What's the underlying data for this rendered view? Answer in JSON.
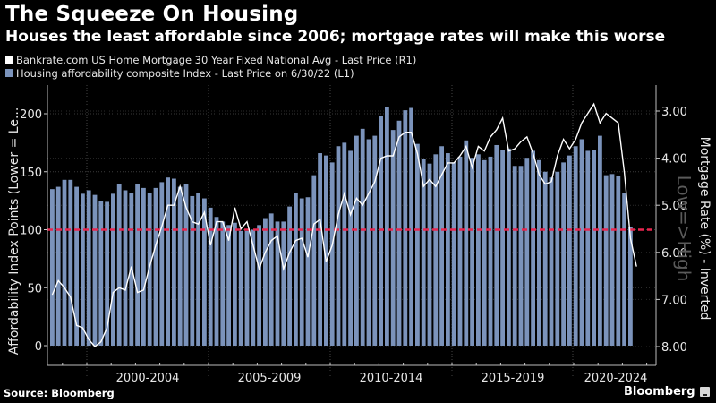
{
  "header": {
    "title": "The Squeeze On Housing",
    "subtitle": "Houses the least affordable since 2006; mortgage rates will make this worse"
  },
  "legend": [
    {
      "label": "Bankrate.com US Home Mortgage 30 Year Fixed National Avg - Last Price (R1)",
      "color": "#ffffff"
    },
    {
      "label": "Housing affordability composite Index - Last Price on 6/30/22 (L1)",
      "color": "#7b93bb"
    }
  ],
  "footer": {
    "source": "Source: Bloomberg",
    "brand": "Bloomberg"
  },
  "chart_data": {
    "type": "bar",
    "title": "The Squeeze On Housing",
    "subtitle": "Houses the least affordable since 2006; mortgage rates will make this worse",
    "ylabel": "Affordability Index Points (Lower = Le...",
    "y2label": "Mortgage Rate (%) - Inverted",
    "y2_annotation": "Low=>High",
    "xlabel": "",
    "x_tick_labels": [
      "2000-2004",
      "2005-2009",
      "2010-2014",
      "2015-2019",
      "2020-2024"
    ],
    "y_ticks": [
      0,
      50,
      100,
      150,
      200
    ],
    "y_tick_labels": [
      "0",
      "50",
      "100",
      "150",
      "200"
    ],
    "ylim": [
      0,
      230
    ],
    "y2_ticks": [
      3,
      4,
      5,
      6,
      7,
      8
    ],
    "y2_tick_labels": [
      "3.00",
      "4.00",
      "5.00",
      "6.00",
      "7.00",
      "8.00"
    ],
    "y2lim_inverted": [
      2.3,
      8.0
    ],
    "reference_line": {
      "value": 100,
      "color": "#e8264f",
      "style": "dashed"
    },
    "grid": true,
    "start_quarter": "1998Q3",
    "series": [
      {
        "name": "Housing affordability composite Index - Last Price on 6/30/22 (L1)",
        "axis": "left",
        "kind": "bar",
        "color": "#7b93bb",
        "values": [
          135,
          137,
          143,
          143,
          137,
          131,
          134,
          130,
          125,
          124,
          131,
          139,
          134,
          132,
          139,
          136,
          132,
          136,
          141,
          145,
          144,
          137,
          139,
          129,
          132,
          127,
          119,
          111,
          107,
          104,
          106,
          99,
          99,
          100,
          104,
          110,
          114,
          107,
          107,
          120,
          132,
          127,
          128,
          147,
          166,
          164,
          158,
          172,
          175,
          168,
          181,
          187,
          178,
          181,
          198,
          206,
          186,
          194,
          203,
          205,
          174,
          161,
          157,
          165,
          172,
          166,
          158,
          163,
          177,
          162,
          165,
          160,
          163,
          173,
          169,
          170,
          155,
          155,
          162,
          168,
          160,
          150,
          145,
          150,
          158,
          164,
          172,
          178,
          168,
          169,
          181,
          147,
          148,
          146,
          132,
          102
        ]
      },
      {
        "name": "Bankrate.com US Home Mortgage 30 Year Fixed National Avg - Last Price (R1)",
        "axis": "right",
        "kind": "line",
        "color": "#ffffff",
        "values": [
          6.9,
          6.6,
          6.75,
          6.95,
          7.55,
          7.6,
          7.85,
          8.0,
          7.9,
          7.6,
          6.85,
          6.75,
          6.8,
          6.3,
          6.85,
          6.8,
          6.3,
          5.85,
          5.45,
          5.0,
          5.0,
          4.6,
          5.05,
          5.35,
          5.4,
          5.15,
          5.85,
          5.35,
          5.35,
          5.75,
          5.05,
          5.5,
          5.35,
          5.85,
          6.35,
          6.0,
          5.75,
          5.65,
          6.35,
          6.0,
          5.75,
          5.7,
          6.1,
          5.4,
          5.3,
          6.2,
          5.85,
          5.2,
          4.75,
          5.2,
          4.85,
          5.0,
          4.75,
          4.5,
          4.0,
          3.95,
          3.95,
          3.55,
          3.45,
          3.45,
          3.9,
          4.6,
          4.45,
          4.6,
          4.35,
          4.1,
          4.1,
          3.95,
          3.75,
          4.2,
          3.75,
          3.85,
          3.55,
          3.4,
          3.15,
          3.85,
          3.8,
          3.65,
          3.55,
          3.9,
          4.35,
          4.55,
          4.5,
          3.95,
          3.6,
          3.8,
          3.6,
          3.25,
          3.05,
          2.85,
          3.25,
          3.05,
          3.15,
          3.25,
          4.3,
          5.7,
          6.3
        ]
      }
    ]
  }
}
